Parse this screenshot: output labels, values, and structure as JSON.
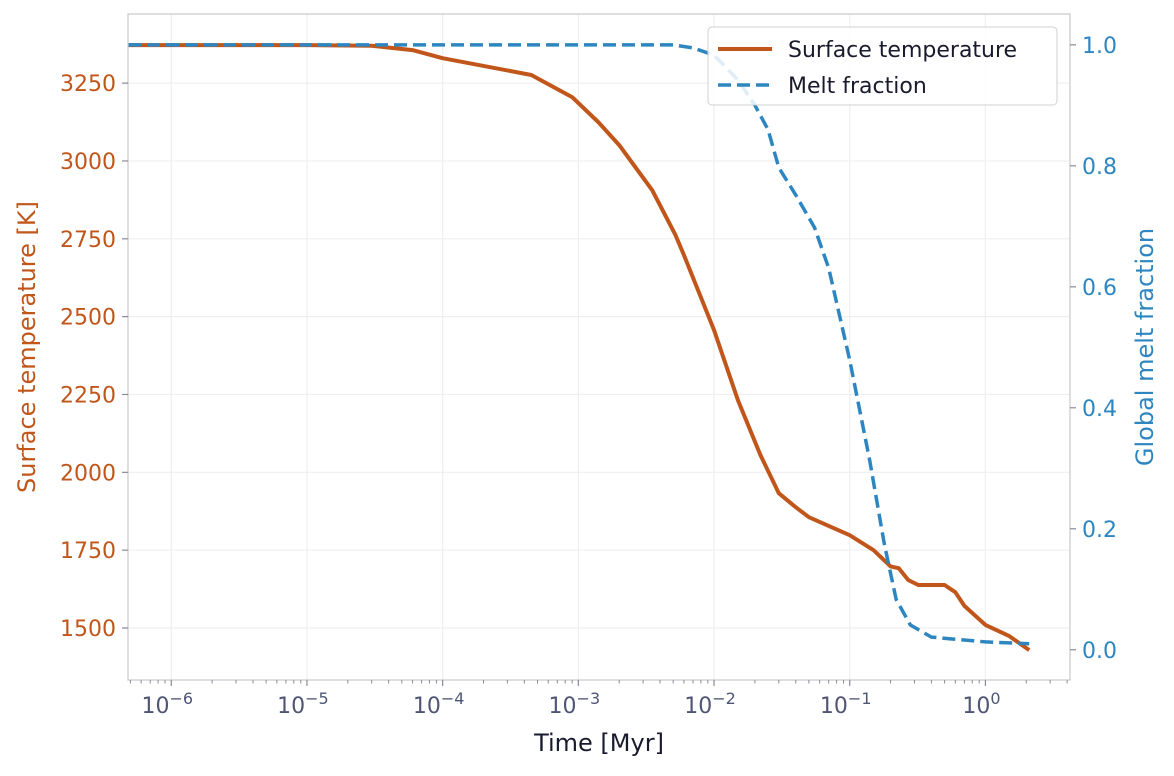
{
  "chart_data": {
    "type": "line",
    "xlabel": "Time [Myr]",
    "ylabel_left": "Surface temperature [K]",
    "ylabel_right": "Global melt fraction",
    "xscale": "log",
    "xlim": [
      4.8e-07,
      4.2
    ],
    "ylim_left": [
      1333,
      3472
    ],
    "ylim_right": [
      -0.05,
      1.051
    ],
    "x_ticks": [
      1e-06,
      1e-05,
      0.0001,
      0.001,
      0.01,
      0.1,
      1
    ],
    "x_tick_labels": [
      [
        "10",
        "−6"
      ],
      [
        "10",
        "−5"
      ],
      [
        "10",
        "−4"
      ],
      [
        "10",
        "−3"
      ],
      [
        "10",
        "−2"
      ],
      [
        "10",
        "−1"
      ],
      [
        "10",
        "0"
      ]
    ],
    "y_left_ticks": [
      1500,
      1750,
      2000,
      2250,
      2500,
      2750,
      3000,
      3250
    ],
    "y_right_ticks": [
      0.0,
      0.2,
      0.4,
      0.6,
      0.8,
      1.0
    ],
    "y_right_tick_labels": [
      "0.0",
      "0.2",
      "0.4",
      "0.6",
      "0.8",
      "1.0"
    ],
    "grid": true,
    "legend_position": "top-right",
    "series": [
      {
        "name": "Surface temperature",
        "axis": "left",
        "color": "#c1561b",
        "style": "solid",
        "x": [
          4.8e-07,
          1e-06,
          1e-05,
          3e-05,
          6e-05,
          0.0001,
          0.00045,
          0.0009,
          0.0014,
          0.002,
          0.0035,
          0.0052,
          0.006,
          0.01,
          0.015,
          0.022,
          0.03,
          0.04,
          0.05,
          0.1,
          0.15,
          0.2,
          0.23,
          0.27,
          0.32,
          0.5,
          0.6,
          0.7,
          1.0,
          1.5,
          2.1
        ],
        "y": [
          3372,
          3372,
          3372,
          3370,
          3356,
          3330,
          3276,
          3205,
          3125,
          3051,
          2906,
          2762,
          2698,
          2457,
          2232,
          2055,
          1933,
          1888,
          1856,
          1798,
          1750,
          1698,
          1692,
          1654,
          1638,
          1638,
          1615,
          1571,
          1510,
          1474,
          1429
        ]
      },
      {
        "name": "Melt fraction",
        "axis": "right",
        "color": "#2e86c1",
        "style": "dashed",
        "x": [
          4.8e-07,
          1e-06,
          0.0001,
          0.001,
          0.005,
          0.007,
          0.01,
          0.015,
          0.02,
          0.025,
          0.03,
          0.04,
          0.055,
          0.07,
          0.1,
          0.14,
          0.18,
          0.22,
          0.28,
          0.4,
          1.0,
          2.1
        ],
        "y": [
          1.0,
          1.0,
          1.0,
          1.0,
          1.0,
          0.995,
          0.983,
          0.942,
          0.9,
          0.86,
          0.797,
          0.752,
          0.698,
          0.631,
          0.479,
          0.314,
          0.174,
          0.083,
          0.041,
          0.021,
          0.013,
          0.01
        ]
      }
    ]
  }
}
